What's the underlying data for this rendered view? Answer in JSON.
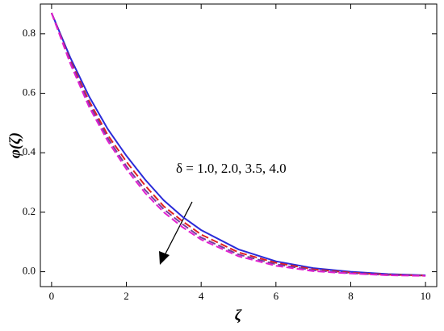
{
  "chart_data": {
    "type": "line",
    "x_label": "ζ",
    "y_label": "φ(ζ)",
    "annotation": "δ = 1.0, 2.0, 3.5, 4.0",
    "x": [
      0,
      0.5,
      1,
      1.5,
      2,
      2.5,
      3,
      3.5,
      4,
      5,
      6,
      7,
      8,
      9,
      10
    ],
    "series": [
      {
        "color": "#2b2bd9",
        "dash": "none",
        "values": [
          0.87,
          0.72,
          0.59,
          0.48,
          0.39,
          0.31,
          0.24,
          0.185,
          0.14,
          0.075,
          0.035,
          0.012,
          0.0,
          -0.008,
          -0.012
        ]
      },
      {
        "color": "#e02020",
        "dash": "9 4",
        "values": [
          0.87,
          0.71,
          0.575,
          0.46,
          0.37,
          0.29,
          0.22,
          0.17,
          0.125,
          0.065,
          0.03,
          0.008,
          -0.003,
          -0.01,
          -0.013
        ]
      },
      {
        "color": "#7a3aa0",
        "dash": "9 4",
        "values": [
          0.87,
          0.705,
          0.565,
          0.45,
          0.355,
          0.275,
          0.21,
          0.16,
          0.115,
          0.058,
          0.025,
          0.005,
          -0.005,
          -0.011,
          -0.013
        ]
      },
      {
        "color": "#e020d0",
        "dash": "9 4",
        "values": [
          0.87,
          0.7,
          0.555,
          0.44,
          0.345,
          0.265,
          0.2,
          0.15,
          0.108,
          0.052,
          0.02,
          0.002,
          -0.006,
          -0.012,
          -0.014
        ]
      }
    ],
    "xlim": [
      -0.3,
      10.3
    ],
    "ylim": [
      -0.05,
      0.9
    ],
    "xticks": [
      0,
      2,
      4,
      6,
      8,
      10
    ],
    "yticks": [
      {
        "value": 0,
        "label": "0.0"
      },
      0.2,
      0.4,
      0.6,
      0.8
    ]
  }
}
